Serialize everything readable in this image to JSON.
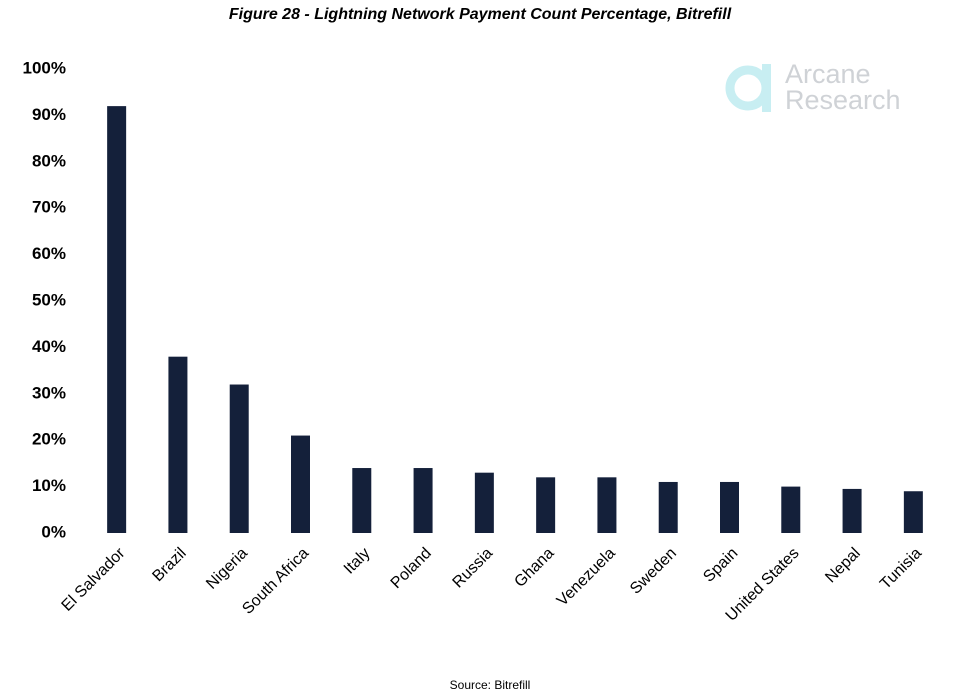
{
  "chart_data": {
    "type": "bar",
    "title": "Figure 28 - Lightning Network Payment Count Percentage, Bitrefill",
    "categories": [
      "El Salvador",
      "Brazil",
      "Nigeria",
      "South Africa",
      "Italy",
      "Poland",
      "Russia",
      "Ghana",
      "Venezuela",
      "Sweden",
      "Spain",
      "United States",
      "Nepal",
      "Tunisia"
    ],
    "values": [
      92,
      38,
      32,
      21,
      14,
      14,
      13,
      12,
      12,
      11,
      11,
      10,
      9.5,
      9
    ],
    "color": "#14203a",
    "ylim": [
      0,
      100
    ],
    "yticks": [
      {
        "value": 0,
        "label": "0%"
      },
      {
        "value": 10,
        "label": "10%"
      },
      {
        "value": 20,
        "label": "20%"
      },
      {
        "value": 30,
        "label": "30%"
      },
      {
        "value": 40,
        "label": "40%"
      },
      {
        "value": 50,
        "label": "50%"
      },
      {
        "value": 60,
        "label": "60%"
      },
      {
        "value": 70,
        "label": "70%"
      },
      {
        "value": 80,
        "label": "80%"
      },
      {
        "value": 90,
        "label": "90%"
      },
      {
        "value": 100,
        "label": "100%"
      }
    ],
    "grid": false,
    "source": "Source: Bitrefill",
    "logo": {
      "line1": "Arcane",
      "line2": "Research"
    }
  }
}
